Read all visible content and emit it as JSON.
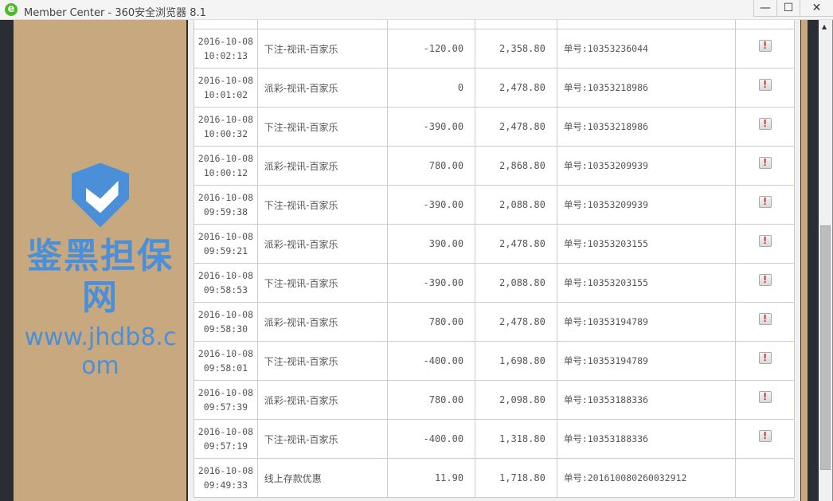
{
  "window": {
    "title": "Member Center - 360安全浏览器 8.1",
    "minimize": "—",
    "maximize": "☐",
    "close": "✕"
  },
  "rows": [
    {
      "date": "2016-10-08",
      "time": "10:02:13",
      "type": "下注-视讯-百家乐",
      "amount": "-120.00",
      "balance": "2,358.80",
      "order": "单号:10353236044",
      "flag": true
    },
    {
      "date": "2016-10-08",
      "time": "10:01:02",
      "type": "派彩-视讯-百家乐",
      "amount": "0",
      "balance": "2,478.80",
      "order": "单号:10353218986",
      "flag": true
    },
    {
      "date": "2016-10-08",
      "time": "10:00:32",
      "type": "下注-视讯-百家乐",
      "amount": "-390.00",
      "balance": "2,478.80",
      "order": "单号:10353218986",
      "flag": true
    },
    {
      "date": "2016-10-08",
      "time": "10:00:12",
      "type": "派彩-视讯-百家乐",
      "amount": "780.00",
      "balance": "2,868.80",
      "order": "单号:10353209939",
      "flag": true
    },
    {
      "date": "2016-10-08",
      "time": "09:59:38",
      "type": "下注-视讯-百家乐",
      "amount": "-390.00",
      "balance": "2,088.80",
      "order": "单号:10353209939",
      "flag": true
    },
    {
      "date": "2016-10-08",
      "time": "09:59:21",
      "type": "派彩-视讯-百家乐",
      "amount": "390.00",
      "balance": "2,478.80",
      "order": "单号:10353203155",
      "flag": true
    },
    {
      "date": "2016-10-08",
      "time": "09:58:53",
      "type": "下注-视讯-百家乐",
      "amount": "-390.00",
      "balance": "2,088.80",
      "order": "单号:10353203155",
      "flag": true
    },
    {
      "date": "2016-10-08",
      "time": "09:58:30",
      "type": "派彩-视讯-百家乐",
      "amount": "780.00",
      "balance": "2,478.80",
      "order": "单号:10353194789",
      "flag": true
    },
    {
      "date": "2016-10-08",
      "time": "09:58:01",
      "type": "下注-视讯-百家乐",
      "amount": "-400.00",
      "balance": "1,698.80",
      "order": "单号:10353194789",
      "flag": true
    },
    {
      "date": "2016-10-08",
      "time": "09:57:39",
      "type": "派彩-视讯-百家乐",
      "amount": "780.00",
      "balance": "2,098.80",
      "order": "单号:10353188336",
      "flag": true
    },
    {
      "date": "2016-10-08",
      "time": "09:57:19",
      "type": "下注-视讯-百家乐",
      "amount": "-400.00",
      "balance": "1,318.80",
      "order": "单号:10353188336",
      "flag": true
    },
    {
      "date": "2016-10-08",
      "time": "09:49:33",
      "type": "线上存款优惠",
      "amount": "11.90",
      "balance": "1,718.80",
      "order": "单号:201610080260032912",
      "flag": false
    }
  ],
  "flag_icon": "exclamation-icon",
  "watermark": {
    "name": "鉴黑担保网",
    "url": "www.jhdb8.com"
  },
  "colors": {
    "side_panel": "#c8a87e",
    "flag": "#cc0000"
  }
}
